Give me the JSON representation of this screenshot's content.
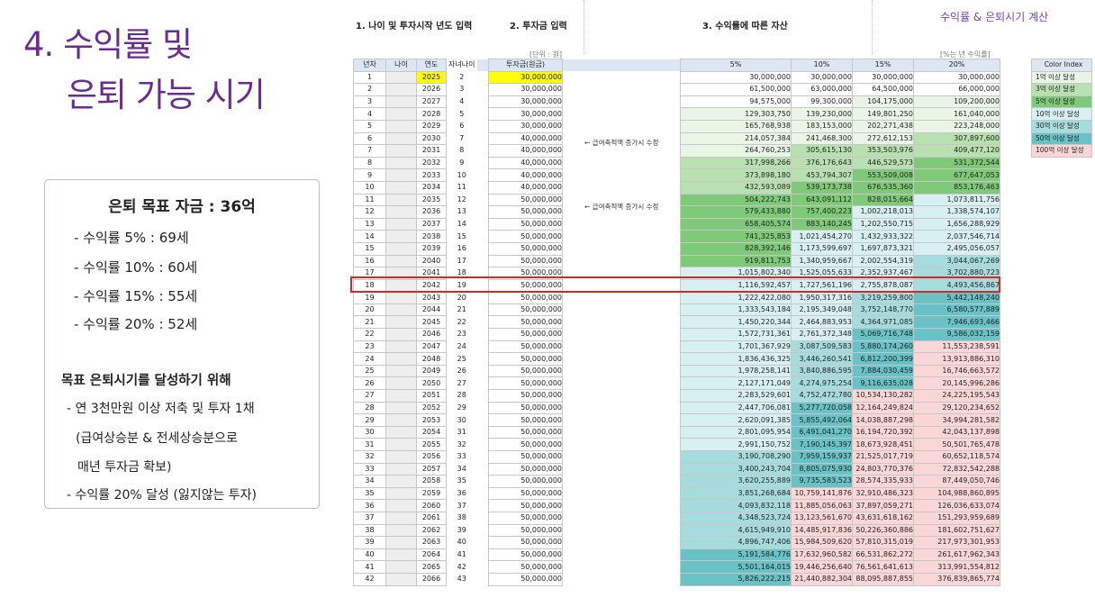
{
  "slide": {
    "title_line1": "4. 수익률 및",
    "title_line2": "은퇴 가능 시기",
    "top_right": "수익률 & 은퇴시기 계산"
  },
  "info": {
    "goal": "은퇴 목표 자금 : 36억",
    "rates": [
      "- 수익률   5% : 69세",
      "- 수익률 10% : 60세",
      "- 수익률 15% : 55세",
      "- 수익률 20% : 52세"
    ],
    "subheading": "목표 은퇴시기를 달성하기 위해",
    "line1": "- 연 3천만원 이상 저축 및 투자 1채",
    "line2": "(급여상승분 & 전세상승분으로",
    "line3": "매년 투자금 확보)",
    "line4": "- 수익률 20% 달성 (잃지않는 투자)"
  },
  "sections": {
    "s1": "1. 나이 및 투자시작 년도 입력",
    "s2": "2. 투자금 입력",
    "s3": "3. 수익률에 따른 자산",
    "unit_note": "[단위 : 원]",
    "rate_note": "[%는 년 수익률]"
  },
  "headers": {
    "year_no": "년차",
    "age": "나이",
    "year": "연도",
    "child_age": "자녀나이",
    "investment": "투자금(원금)",
    "rates": [
      "5%",
      "10%",
      "15%",
      "20%"
    ]
  },
  "annotations": [
    "← 급여축적액 증가시 수정",
    "← 급여축적액 증가시 수정"
  ],
  "legend": {
    "title": "Color Index",
    "items": [
      {
        "label": "1억 이상 달성",
        "color": "#e9f6e5"
      },
      {
        "label": "3억 이상 달성",
        "color": "#b8e0b0"
      },
      {
        "label": "5억 이상 달성",
        "color": "#7fca79"
      },
      {
        "label": "10억 이상 달성",
        "color": "#d8f0f2"
      },
      {
        "label": "30억 이상 달성",
        "color": "#a7dcdf"
      },
      {
        "label": "50억 이상 달성",
        "color": "#68c2c6"
      },
      {
        "label": "100억 이상 달성",
        "color": "#fbd6d6"
      }
    ]
  },
  "colors": {
    "white": "#ffffff",
    "g1": "#e9f6e5",
    "g2": "#b8e0b0",
    "g3": "#7fca79",
    "t1": "#d8f0f2",
    "t2": "#a7dcdf",
    "t3": "#68c2c6",
    "p1": "#fbd6d6",
    "highlight_border": "#d62828",
    "start_year_fill": "#ffff00"
  },
  "highlight_row": 17,
  "rows": [
    {
      "n": "1",
      "y": "2025",
      "c": "2",
      "inv": "30,000,000",
      "r": [
        "30,000,000",
        "30,000,000",
        "30,000,000",
        "30,000,000"
      ],
      "col": [
        "white",
        "white",
        "white",
        "white"
      ]
    },
    {
      "n": "2",
      "y": "2026",
      "c": "3",
      "inv": "30,000,000",
      "r": [
        "61,500,000",
        "63,000,000",
        "64,500,000",
        "66,000,000"
      ],
      "col": [
        "white",
        "white",
        "white",
        "white"
      ]
    },
    {
      "n": "3",
      "y": "2027",
      "c": "4",
      "inv": "30,000,000",
      "r": [
        "94,575,000",
        "99,300,000",
        "104,175,000",
        "109,200,000"
      ],
      "col": [
        "white",
        "white",
        "g1",
        "g1"
      ]
    },
    {
      "n": "4",
      "y": "2028",
      "c": "5",
      "inv": "30,000,000",
      "r": [
        "129,303,750",
        "139,230,000",
        "149,801,250",
        "161,040,000"
      ],
      "col": [
        "g1",
        "g1",
        "g1",
        "g1"
      ]
    },
    {
      "n": "5",
      "y": "2029",
      "c": "6",
      "inv": "30,000,000",
      "r": [
        "165,768,938",
        "183,153,000",
        "202,271,438",
        "223,248,000"
      ],
      "col": [
        "g1",
        "g1",
        "g1",
        "g1"
      ]
    },
    {
      "n": "6",
      "y": "2030",
      "c": "7",
      "inv": "40,000,000",
      "r": [
        "214,057,384",
        "241,468,300",
        "272,612,153",
        "307,897,600"
      ],
      "col": [
        "g1",
        "g1",
        "g1",
        "g2"
      ]
    },
    {
      "n": "7",
      "y": "2031",
      "c": "8",
      "inv": "40,000,000",
      "r": [
        "264,760,253",
        "305,615,130",
        "353,503,976",
        "409,477,120"
      ],
      "col": [
        "g1",
        "g2",
        "g2",
        "g2"
      ]
    },
    {
      "n": "8",
      "y": "2032",
      "c": "9",
      "inv": "40,000,000",
      "r": [
        "317,998,266",
        "376,176,643",
        "446,529,573",
        "531,372,544"
      ],
      "col": [
        "g2",
        "g2",
        "g2",
        "g3"
      ]
    },
    {
      "n": "9",
      "y": "2033",
      "c": "10",
      "inv": "40,000,000",
      "r": [
        "373,898,180",
        "453,794,307",
        "553,509,008",
        "677,647,053"
      ],
      "col": [
        "g2",
        "g2",
        "g3",
        "g3"
      ]
    },
    {
      "n": "10",
      "y": "2034",
      "c": "11",
      "inv": "40,000,000",
      "r": [
        "432,593,089",
        "539,173,738",
        "676,535,360",
        "853,176,463"
      ],
      "col": [
        "g2",
        "g3",
        "g3",
        "g3"
      ]
    },
    {
      "n": "11",
      "y": "2035",
      "c": "12",
      "inv": "50,000,000",
      "r": [
        "504,222,743",
        "643,091,112",
        "828,015,664",
        "1,073,811,756"
      ],
      "col": [
        "g3",
        "g3",
        "g3",
        "t1"
      ]
    },
    {
      "n": "12",
      "y": "2036",
      "c": "13",
      "inv": "50,000,000",
      "r": [
        "579,433,880",
        "757,400,223",
        "1,002,218,013",
        "1,338,574,107"
      ],
      "col": [
        "g3",
        "g3",
        "t1",
        "t1"
      ]
    },
    {
      "n": "13",
      "y": "2037",
      "c": "14",
      "inv": "50,000,000",
      "r": [
        "658,405,574",
        "883,140,245",
        "1,202,550,715",
        "1,656,288,929"
      ],
      "col": [
        "g3",
        "g3",
        "t1",
        "t1"
      ]
    },
    {
      "n": "14",
      "y": "2038",
      "c": "15",
      "inv": "50,000,000",
      "r": [
        "741,325,853",
        "1,021,454,270",
        "1,432,933,322",
        "2,037,546,714"
      ],
      "col": [
        "g3",
        "t1",
        "t1",
        "t1"
      ]
    },
    {
      "n": "15",
      "y": "2039",
      "c": "16",
      "inv": "50,000,000",
      "r": [
        "828,392,146",
        "1,173,599,697",
        "1,697,873,321",
        "2,495,056,057"
      ],
      "col": [
        "g3",
        "t1",
        "t1",
        "t1"
      ]
    },
    {
      "n": "16",
      "y": "2040",
      "c": "17",
      "inv": "50,000,000",
      "r": [
        "919,811,753",
        "1,340,959,667",
        "2,002,554,319",
        "3,044,067,269"
      ],
      "col": [
        "g3",
        "t1",
        "t1",
        "t2"
      ]
    },
    {
      "n": "17",
      "y": "2041",
      "c": "18",
      "inv": "50,000,000",
      "r": [
        "1,015,802,340",
        "1,525,055,633",
        "2,352,937,467",
        "3,702,880,723"
      ],
      "col": [
        "t1",
        "t1",
        "t1",
        "t2"
      ]
    },
    {
      "n": "18",
      "y": "2042",
      "c": "19",
      "inv": "50,000,000",
      "r": [
        "1,116,592,457",
        "1,727,561,196",
        "2,755,878,087",
        "4,493,456,867"
      ],
      "col": [
        "t1",
        "t1",
        "t1",
        "t2"
      ]
    },
    {
      "n": "19",
      "y": "2043",
      "c": "20",
      "inv": "50,000,000",
      "r": [
        "1,222,422,080",
        "1,950,317,316",
        "3,219,259,800",
        "5,442,148,240"
      ],
      "col": [
        "t1",
        "t1",
        "t2",
        "t3"
      ]
    },
    {
      "n": "20",
      "y": "2044",
      "c": "21",
      "inv": "50,000,000",
      "r": [
        "1,333,543,184",
        "2,195,349,048",
        "3,752,148,770",
        "6,580,577,889"
      ],
      "col": [
        "t1",
        "t1",
        "t2",
        "t3"
      ]
    },
    {
      "n": "21",
      "y": "2045",
      "c": "22",
      "inv": "50,000,000",
      "r": [
        "1,450,220,344",
        "2,464,883,953",
        "4,364,971,085",
        "7,946,693,466"
      ],
      "col": [
        "t1",
        "t1",
        "t2",
        "t3"
      ]
    },
    {
      "n": "22",
      "y": "2046",
      "c": "23",
      "inv": "50,000,000",
      "r": [
        "1,572,731,361",
        "2,761,372,348",
        "5,069,716,748",
        "9,586,032,159"
      ],
      "col": [
        "t1",
        "t1",
        "t3",
        "t3"
      ]
    },
    {
      "n": "23",
      "y": "2047",
      "c": "24",
      "inv": "50,000,000",
      "r": [
        "1,701,367,929",
        "3,087,509,583",
        "5,880,174,260",
        "11,553,238,591"
      ],
      "col": [
        "t1",
        "t2",
        "t3",
        "p1"
      ]
    },
    {
      "n": "24",
      "y": "2048",
      "c": "25",
      "inv": "50,000,000",
      "r": [
        "1,836,436,325",
        "3,446,260,541",
        "6,812,200,399",
        "13,913,886,310"
      ],
      "col": [
        "t1",
        "t2",
        "t3",
        "p1"
      ]
    },
    {
      "n": "25",
      "y": "2049",
      "c": "26",
      "inv": "50,000,000",
      "r": [
        "1,978,258,141",
        "3,840,886,595",
        "7,884,030,459",
        "16,746,663,572"
      ],
      "col": [
        "t1",
        "t2",
        "t3",
        "p1"
      ]
    },
    {
      "n": "26",
      "y": "2050",
      "c": "27",
      "inv": "50,000,000",
      "r": [
        "2,127,171,049",
        "4,274,975,254",
        "9,116,635,028",
        "20,145,996,286"
      ],
      "col": [
        "t1",
        "t2",
        "t3",
        "p1"
      ]
    },
    {
      "n": "27",
      "y": "2051",
      "c": "28",
      "inv": "50,000,000",
      "r": [
        "2,283,529,601",
        "4,752,472,780",
        "10,534,130,282",
        "24,225,195,543"
      ],
      "col": [
        "t1",
        "t2",
        "p1",
        "p1"
      ]
    },
    {
      "n": "28",
      "y": "2052",
      "c": "29",
      "inv": "50,000,000",
      "r": [
        "2,447,706,081",
        "5,277,720,058",
        "12,164,249,824",
        "29,120,234,652"
      ],
      "col": [
        "t1",
        "t3",
        "p1",
        "p1"
      ]
    },
    {
      "n": "29",
      "y": "2053",
      "c": "30",
      "inv": "50,000,000",
      "r": [
        "2,620,091,385",
        "5,855,492,064",
        "14,038,887,298",
        "34,994,281,582"
      ],
      "col": [
        "t1",
        "t3",
        "p1",
        "p1"
      ]
    },
    {
      "n": "30",
      "y": "2054",
      "c": "31",
      "inv": "50,000,000",
      "r": [
        "2,801,095,954",
        "6,491,041,270",
        "16,194,720,392",
        "42,043,137,898"
      ],
      "col": [
        "t1",
        "t3",
        "p1",
        "p1"
      ]
    },
    {
      "n": "31",
      "y": "2055",
      "c": "32",
      "inv": "50,000,000",
      "r": [
        "2,991,150,752",
        "7,190,145,397",
        "18,673,928,451",
        "50,501,765,478"
      ],
      "col": [
        "t1",
        "t3",
        "p1",
        "p1"
      ]
    },
    {
      "n": "32",
      "y": "2056",
      "c": "33",
      "inv": "50,000,000",
      "r": [
        "3,190,708,290",
        "7,959,159,937",
        "21,525,017,719",
        "60,652,118,574"
      ],
      "col": [
        "t2",
        "t3",
        "p1",
        "p1"
      ]
    },
    {
      "n": "33",
      "y": "2057",
      "c": "34",
      "inv": "50,000,000",
      "r": [
        "3,400,243,704",
        "8,805,075,930",
        "24,803,770,376",
        "72,832,542,288"
      ],
      "col": [
        "t2",
        "t3",
        "p1",
        "p1"
      ]
    },
    {
      "n": "34",
      "y": "2058",
      "c": "35",
      "inv": "50,000,000",
      "r": [
        "3,620,255,889",
        "9,735,583,523",
        "28,574,335,933",
        "87,449,050,746"
      ],
      "col": [
        "t2",
        "t3",
        "p1",
        "p1"
      ]
    },
    {
      "n": "35",
      "y": "2059",
      "c": "36",
      "inv": "50,000,000",
      "r": [
        "3,851,268,684",
        "10,759,141,876",
        "32,910,486,323",
        "104,988,860,895"
      ],
      "col": [
        "t2",
        "p1",
        "p1",
        "p1"
      ]
    },
    {
      "n": "36",
      "y": "2060",
      "c": "37",
      "inv": "50,000,000",
      "r": [
        "4,093,832,118",
        "11,885,056,063",
        "37,897,059,271",
        "126,036,633,074"
      ],
      "col": [
        "t2",
        "p1",
        "p1",
        "p1"
      ]
    },
    {
      "n": "37",
      "y": "2061",
      "c": "38",
      "inv": "50,000,000",
      "r": [
        "4,348,523,724",
        "13,123,561,670",
        "43,631,618,162",
        "151,293,959,689"
      ],
      "col": [
        "t2",
        "p1",
        "p1",
        "p1"
      ]
    },
    {
      "n": "38",
      "y": "2062",
      "c": "39",
      "inv": "50,000,000",
      "r": [
        "4,615,949,910",
        "14,485,917,836",
        "50,226,360,886",
        "181,602,751,627"
      ],
      "col": [
        "t2",
        "p1",
        "p1",
        "p1"
      ]
    },
    {
      "n": "39",
      "y": "2063",
      "c": "40",
      "inv": "50,000,000",
      "r": [
        "4,896,747,406",
        "15,984,509,620",
        "57,810,315,019",
        "217,973,301,953"
      ],
      "col": [
        "t2",
        "p1",
        "p1",
        "p1"
      ]
    },
    {
      "n": "40",
      "y": "2064",
      "c": "41",
      "inv": "50,000,000",
      "r": [
        "5,191,584,776",
        "17,632,960,582",
        "66,531,862,272",
        "261,617,962,343"
      ],
      "col": [
        "t3",
        "p1",
        "p1",
        "p1"
      ]
    },
    {
      "n": "41",
      "y": "2065",
      "c": "42",
      "inv": "50,000,000",
      "r": [
        "5,501,164,015",
        "19,446,256,640",
        "76,561,641,613",
        "313,991,554,812"
      ],
      "col": [
        "t3",
        "p1",
        "p1",
        "p1"
      ]
    },
    {
      "n": "42",
      "y": "2066",
      "c": "43",
      "inv": "50,000,000",
      "r": [
        "5,826,222,215",
        "21,440,882,304",
        "88,095,887,855",
        "376,839,865,774"
      ],
      "col": [
        "t3",
        "p1",
        "p1",
        "p1"
      ]
    }
  ]
}
